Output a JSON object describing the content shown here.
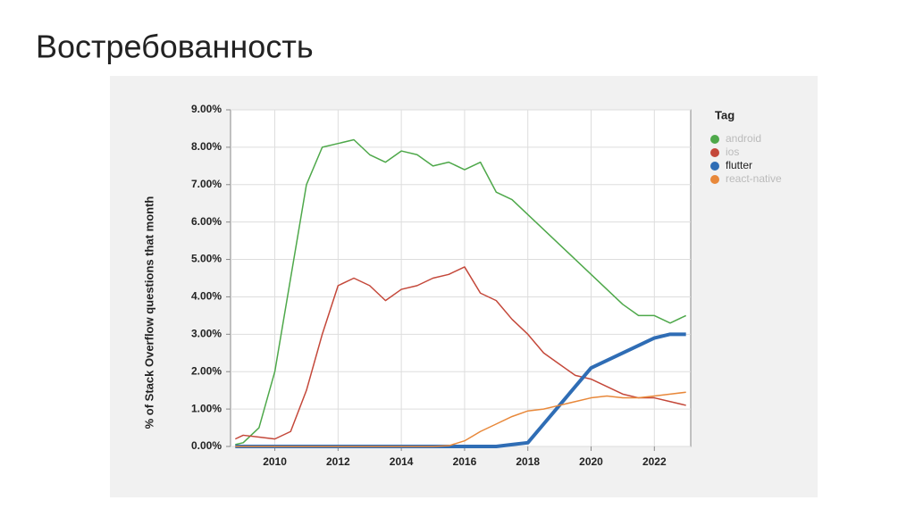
{
  "slide_title": "Востребованность",
  "chart_data": {
    "type": "line",
    "y_label": "% of Stack Overflow questions that month",
    "legend_title": "Tag",
    "legend": "right",
    "grid": true,
    "x": [
      2008.75,
      2009,
      2009.5,
      2010,
      2010.5,
      2011,
      2011.5,
      2012,
      2012.5,
      2013,
      2013.5,
      2014,
      2014.5,
      2015,
      2015.5,
      2016,
      2016.5,
      2017,
      2017.5,
      2018,
      2018.5,
      2019,
      2019.5,
      2020,
      2020.5,
      2021,
      2021.5,
      2022,
      2022.5,
      2023
    ],
    "xlim": [
      2008.6,
      2023.15
    ],
    "xticks": [
      2010,
      2012,
      2014,
      2016,
      2018,
      2020,
      2022
    ],
    "ylim": [
      0,
      9
    ],
    "yticks": [
      {
        "value": 0,
        "label": "0.00%"
      },
      {
        "value": 1,
        "label": "1.00%"
      },
      {
        "value": 2,
        "label": "2.00%"
      },
      {
        "value": 3,
        "label": "3.00%"
      },
      {
        "value": 4,
        "label": "4.00%"
      },
      {
        "value": 5,
        "label": "5.00%"
      },
      {
        "value": 6,
        "label": "6.00%"
      },
      {
        "value": 7,
        "label": "7.00%"
      },
      {
        "value": 8,
        "label": "8.00%"
      },
      {
        "value": 9,
        "label": "9.00%"
      }
    ],
    "series": [
      {
        "name": "android",
        "color": "#4ea84a",
        "width": 1.5,
        "values": [
          0.05,
          0.1,
          0.5,
          2.0,
          4.5,
          7.0,
          8.0,
          8.1,
          8.2,
          7.8,
          7.6,
          7.9,
          7.8,
          7.5,
          7.6,
          7.4,
          7.6,
          6.8,
          6.6,
          6.2,
          5.8,
          5.4,
          5.0,
          4.6,
          4.2,
          3.8,
          3.5,
          3.5,
          3.3,
          3.5
        ]
      },
      {
        "name": "ios",
        "color": "#c4483a",
        "width": 1.5,
        "values": [
          0.2,
          0.3,
          0.25,
          0.2,
          0.4,
          1.5,
          3.0,
          4.3,
          4.5,
          4.3,
          3.9,
          4.2,
          4.3,
          4.5,
          4.6,
          4.8,
          4.1,
          3.9,
          3.4,
          3.0,
          2.5,
          2.2,
          1.9,
          1.8,
          1.6,
          1.4,
          1.3,
          1.3,
          1.2,
          1.1
        ]
      },
      {
        "name": "flutter",
        "color": "#2f6db5",
        "width": 4,
        "values": [
          0,
          0,
          0,
          0,
          0,
          0,
          0,
          0,
          0,
          0,
          0,
          0,
          0,
          0,
          0,
          0,
          0,
          0,
          0.05,
          0.1,
          0.6,
          1.1,
          1.6,
          2.1,
          2.3,
          2.5,
          2.7,
          2.9,
          3.0,
          3.0
        ]
      },
      {
        "name": "react-native",
        "color": "#e8883a",
        "width": 1.5,
        "values": [
          0,
          0,
          0,
          0,
          0,
          0,
          0,
          0,
          0,
          0,
          0,
          0,
          0,
          0,
          0.02,
          0.15,
          0.4,
          0.6,
          0.8,
          0.95,
          1.0,
          1.1,
          1.2,
          1.3,
          1.35,
          1.3,
          1.3,
          1.35,
          1.4,
          1.45
        ]
      }
    ]
  }
}
